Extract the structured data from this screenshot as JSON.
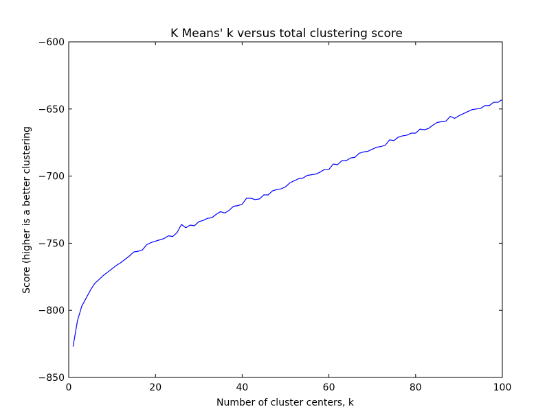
{
  "chart_data": {
    "type": "line",
    "title": "K Means' k versus total clustering score",
    "xlabel": "Number of cluster centers, k",
    "ylabel": "Score (higher is a better clustering",
    "xlim": [
      0,
      100
    ],
    "ylim": [
      -850,
      -600
    ],
    "xticks": [
      0,
      20,
      40,
      60,
      80,
      100
    ],
    "yticks": [
      -850,
      -800,
      -750,
      -700,
      -650,
      -600
    ],
    "ytick_labels": [
      "−850",
      "−800",
      "−750",
      "−700",
      "−650",
      "−600"
    ],
    "grid": false,
    "line_color": "#0000ff",
    "series": [
      {
        "x": [
          1,
          2,
          3,
          4,
          5,
          6,
          7,
          8,
          9,
          10,
          11,
          12,
          13,
          14,
          15,
          16,
          17,
          18,
          19,
          20,
          21,
          22,
          23,
          24,
          25,
          26,
          27,
          28,
          29,
          30,
          31,
          32,
          33,
          34,
          35,
          36,
          37,
          38,
          39,
          40,
          41,
          42,
          43,
          44,
          45,
          46,
          47,
          48,
          49,
          50,
          51,
          52,
          53,
          54,
          55,
          56,
          57,
          58,
          59,
          60,
          61,
          62,
          63,
          64,
          65,
          66,
          67,
          68,
          69,
          70,
          71,
          72,
          73,
          74,
          75,
          76,
          77,
          78,
          79,
          80,
          81,
          82,
          83,
          84,
          85,
          86,
          87,
          88,
          89,
          90,
          91,
          92,
          93,
          94,
          95,
          96,
          97,
          98,
          99,
          100
        ],
        "values": [
          -827,
          -808,
          -797,
          -791,
          -785,
          -780,
          -777,
          -774,
          -771.5,
          -769,
          -766.5,
          -764.5,
          -762,
          -759.5,
          -756.5,
          -756,
          -755,
          -751,
          -749.5,
          -748.5,
          -747.5,
          -746.5,
          -744.5,
          -745,
          -742,
          -736,
          -738.5,
          -736.5,
          -737,
          -734,
          -733,
          -731.5,
          -731,
          -728.5,
          -726.5,
          -727.5,
          -725.5,
          -722.5,
          -722,
          -721,
          -716.5,
          -716.5,
          -717.5,
          -717,
          -714,
          -714,
          -711,
          -710,
          -709.5,
          -708,
          -705,
          -703.5,
          -702,
          -701.5,
          -699.5,
          -699,
          -698.5,
          -697,
          -695,
          -695,
          -691,
          -691.5,
          -688.5,
          -688.5,
          -686.5,
          -686,
          -683,
          -682,
          -681.5,
          -680,
          -678.5,
          -678,
          -677,
          -673,
          -673.5,
          -671,
          -670,
          -669.5,
          -668,
          -668,
          -665,
          -665.5,
          -664.5,
          -662,
          -660,
          -659.5,
          -659,
          -655.5,
          -657,
          -655,
          -653.5,
          -652,
          -650.5,
          -650,
          -649.5,
          -647.5,
          -647.5,
          -645,
          -645,
          -643
        ]
      }
    ]
  }
}
